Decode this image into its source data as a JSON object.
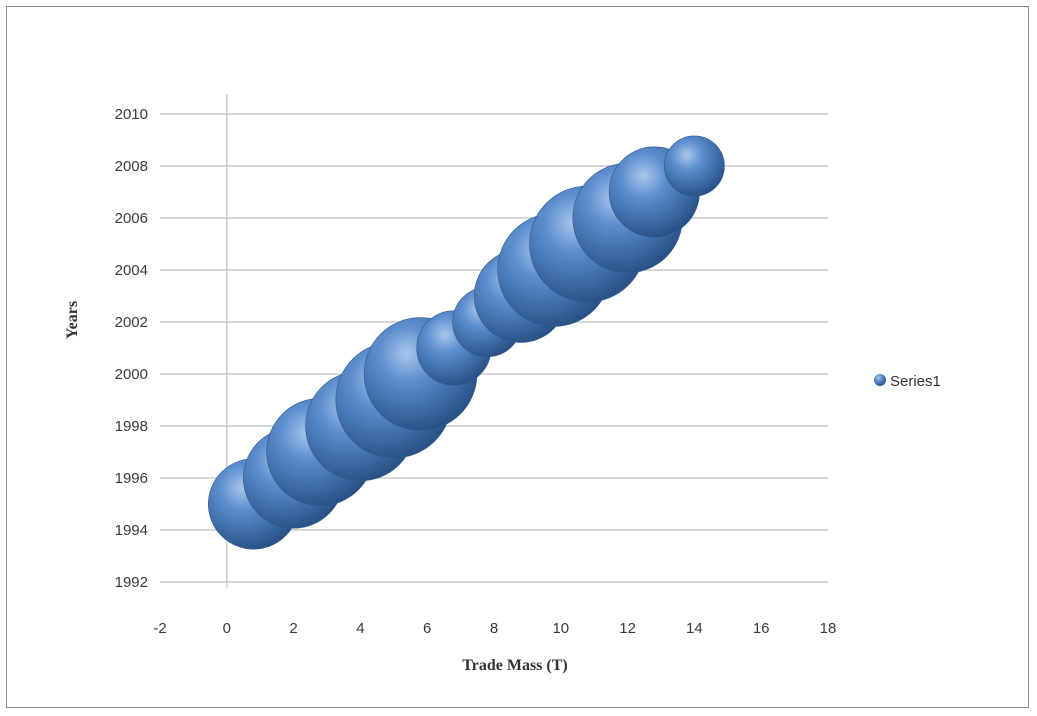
{
  "chart_data": {
    "type": "bubble",
    "title": "",
    "xlabel": "Trade Mass (T)",
    "ylabel": "Years",
    "xlim": [
      -2,
      18
    ],
    "ylim": [
      1992,
      2010
    ],
    "x_ticks": [
      "-2",
      "0",
      "2",
      "4",
      "6",
      "8",
      "10",
      "12",
      "14",
      "16",
      "18"
    ],
    "y_ticks": [
      "1992",
      "1994",
      "1996",
      "1998",
      "2000",
      "2002",
      "2004",
      "2006",
      "2008",
      "2010"
    ],
    "grid": true,
    "legend_position": "right",
    "series": [
      {
        "name": "Series1",
        "color": "#4f81bd",
        "points": [
          {
            "x": 0.8,
            "y": 1995,
            "size": 3.4
          },
          {
            "x": 2.0,
            "y": 1996,
            "size": 4.2
          },
          {
            "x": 2.8,
            "y": 1997,
            "size": 4.8
          },
          {
            "x": 4.0,
            "y": 1998,
            "size": 5.0
          },
          {
            "x": 5.0,
            "y": 1999,
            "size": 5.6
          },
          {
            "x": 5.8,
            "y": 2000,
            "size": 5.3
          },
          {
            "x": 6.8,
            "y": 2001,
            "size": 2.3
          },
          {
            "x": 7.8,
            "y": 2002,
            "size": 2.0
          },
          {
            "x": 8.8,
            "y": 2003,
            "size": 3.6
          },
          {
            "x": 9.8,
            "y": 2004,
            "size": 5.3
          },
          {
            "x": 10.8,
            "y": 2005,
            "size": 5.6
          },
          {
            "x": 12.0,
            "y": 2006,
            "size": 5.0
          },
          {
            "x": 12.8,
            "y": 2007,
            "size": 3.4
          },
          {
            "x": 14.0,
            "y": 2008,
            "size": 1.5
          }
        ]
      }
    ]
  }
}
